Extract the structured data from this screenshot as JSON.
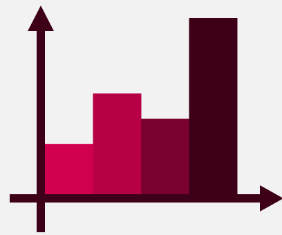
{
  "page": {
    "background": "#f2f2f2",
    "icon": "bar-chart-icon"
  },
  "chart_data": {
    "type": "bar",
    "categories": [
      "",
      "",
      "",
      ""
    ],
    "values": [
      1.0,
      2.0,
      1.5,
      3.5
    ],
    "ylim": [
      0,
      3.5
    ],
    "colors": [
      "#d1004f",
      "#b80045",
      "#7a0030",
      "#3d0018"
    ],
    "axis_color": "#3d0018",
    "grid": false,
    "legend": "none",
    "title": "",
    "xlabel": "",
    "ylabel": ""
  }
}
